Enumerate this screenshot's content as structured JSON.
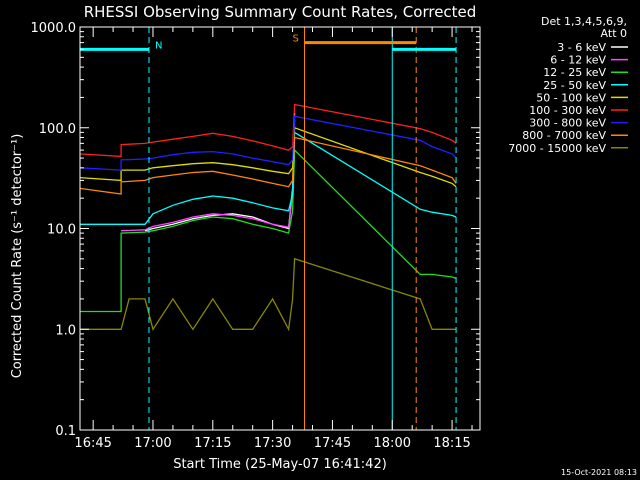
{
  "chart_data": {
    "type": "line",
    "title": "RHESSI Observing Summary Count Rates, Corrected",
    "xlabel": "Start Time (25-May-07 16:41:42)",
    "ylabel": "Corrected Count Rate (s⁻¹ detector⁻¹)",
    "yscale": "log",
    "ylim": [
      0.1,
      1000.0
    ],
    "xlim": [
      "16:41:42",
      "18:22"
    ],
    "y_ticks": [
      "0.1",
      "1.0",
      "10.0",
      "100.0",
      "1000.0"
    ],
    "x_ticks": [
      "16:45",
      "17:00",
      "17:15",
      "17:30",
      "17:45",
      "18:00",
      "18:15"
    ],
    "grid": false,
    "legend": {
      "position": "top-right",
      "header": [
        "Det 1,3,4,5,6,9,",
        "Att 0"
      ]
    },
    "series": [
      {
        "name": "3 - 6 keV",
        "color": "#ffffff",
        "x": [
          "16:41:42",
          "16:52",
          "16:58",
          "17:00",
          "17:05",
          "17:10",
          "17:15",
          "17:20",
          "17:25",
          "17:30",
          "17:34",
          "17:35",
          "17:35:30"
        ],
        "y": [
          null,
          null,
          9.5,
          10,
          11,
          12.5,
          13.5,
          14,
          13,
          11,
          10,
          25,
          140
        ]
      },
      {
        "name": "6 - 12 keV",
        "color": "#ff44ff",
        "x": [
          "16:52",
          "16:58",
          "17:00",
          "17:05",
          "17:10",
          "17:15",
          "17:20",
          "17:25",
          "17:30",
          "17:34",
          "17:35",
          "17:35:30"
        ],
        "y": [
          9.5,
          9.7,
          10.5,
          11.5,
          13,
          14,
          13.5,
          12.5,
          11,
          10.3,
          22,
          120
        ]
      },
      {
        "name": "12 - 25 keV",
        "color": "#22dd22",
        "x": [
          "16:41:42",
          "16:52",
          "16:52:01",
          "16:58",
          "17:00",
          "17:05",
          "17:10",
          "17:15",
          "17:20",
          "17:25",
          "17:30",
          "17:34",
          "17:35",
          "17:35:30",
          "18:07",
          "18:10",
          "18:15",
          "18:16"
        ],
        "y": [
          1.5,
          1.5,
          9,
          9.2,
          9.5,
          10.5,
          12,
          13,
          12.5,
          11,
          10,
          9,
          15,
          60,
          3.5,
          3.5,
          3.3,
          3.2
        ]
      },
      {
        "name": "25 - 50 keV",
        "color": "#00ffff",
        "x": [
          "16:41:42",
          "16:52",
          "16:58",
          "17:00",
          "17:05",
          "17:10",
          "17:15",
          "17:20",
          "17:25",
          "17:30",
          "17:34",
          "17:35",
          "17:35:30",
          "18:07",
          "18:10",
          "18:15",
          "18:16"
        ],
        "y": [
          11,
          11,
          11,
          14,
          17,
          19.5,
          21,
          20,
          18,
          16,
          15,
          22,
          90,
          15.5,
          14.5,
          13.5,
          13
        ]
      },
      {
        "name": "50 - 100 keV",
        "color": "#dddd00",
        "x": [
          "16:41:42",
          "16:52",
          "16:52:01",
          "16:58",
          "17:00",
          "17:05",
          "17:10",
          "17:15",
          "17:20",
          "17:25",
          "17:30",
          "17:34",
          "17:35",
          "17:35:30",
          "18:07",
          "18:10",
          "18:15",
          "18:16"
        ],
        "y": [
          32,
          30,
          38,
          38,
          40,
          42,
          44,
          45,
          43,
          40,
          37,
          35,
          40,
          100,
          36,
          33,
          28,
          26
        ]
      },
      {
        "name": "100 - 300 keV",
        "color": "#ff2020",
        "x": [
          "16:41:42",
          "16:52",
          "16:52:01",
          "16:58",
          "17:00",
          "17:05",
          "17:10",
          "17:15",
          "17:20",
          "17:25",
          "17:30",
          "17:34",
          "17:35",
          "17:35:30",
          "18:07",
          "18:10",
          "18:15",
          "18:16"
        ],
        "y": [
          55,
          52,
          68,
          70,
          72,
          77,
          82,
          88,
          82,
          74,
          66,
          60,
          65,
          170,
          98,
          90,
          75,
          70
        ]
      },
      {
        "name": "300 - 800 keV",
        "color": "#2020ff",
        "x": [
          "16:41:42",
          "16:52",
          "16:52:01",
          "16:58",
          "17:00",
          "17:05",
          "17:10",
          "17:15",
          "17:20",
          "17:25",
          "17:30",
          "17:34",
          "17:35",
          "17:35:30",
          "18:07",
          "18:10",
          "18:15",
          "18:16"
        ],
        "y": [
          40,
          38,
          48,
          49,
          50,
          54,
          57,
          58,
          55,
          50,
          46,
          43,
          48,
          130,
          75,
          65,
          55,
          50
        ]
      },
      {
        "name": "800 - 7000 keV",
        "color": "#ff8800",
        "x": [
          "16:41:42",
          "16:52",
          "16:52:01",
          "16:58",
          "17:00",
          "17:05",
          "17:10",
          "17:15",
          "17:20",
          "17:25",
          "17:30",
          "17:34",
          "17:35",
          "17:35:30",
          "18:07",
          "18:10",
          "18:15",
          "18:16"
        ],
        "y": [
          25,
          22,
          29,
          30,
          32,
          34,
          36,
          37,
          34,
          31,
          28,
          26,
          30,
          80,
          42,
          38,
          32,
          28
        ]
      },
      {
        "name": "7000 - 15000 keV",
        "color": "#888800",
        "x": [
          "16:41:42",
          "16:52",
          "16:54",
          "16:58",
          "17:00",
          "17:05",
          "17:10",
          "17:15",
          "17:20",
          "17:25",
          "17:30",
          "17:34",
          "17:35",
          "17:35:30",
          "18:07",
          "18:10",
          "18:15",
          "18:16"
        ],
        "y": [
          1,
          1,
          2,
          2,
          1,
          2,
          1,
          2,
          1,
          1,
          2,
          1,
          2,
          5,
          2,
          1,
          1,
          1
        ]
      }
    ],
    "annotations": [
      {
        "label": "N",
        "color": "#00ffff",
        "level": 600,
        "x_start": "16:41:42",
        "x_end": "16:59"
      },
      {
        "label": "",
        "color": "#00ffff",
        "level": 600,
        "x_start": "18:00",
        "x_end": "18:16"
      },
      {
        "label": "S",
        "color": "#ff8800",
        "level": 700,
        "x_start": "17:38",
        "x_end": "18:06"
      }
    ],
    "vertical_lines": [
      {
        "x": "16:41:42",
        "color": "#00ffff",
        "style": "solid"
      },
      {
        "x": "16:59",
        "color": "#00ffff",
        "style": "dashed"
      },
      {
        "x": "17:38",
        "color": "#ff8800",
        "style": "solid"
      },
      {
        "x": "18:00",
        "color": "#00ffff",
        "style": "solid"
      },
      {
        "x": "18:06",
        "color": "#ff8800",
        "style": "dashed"
      },
      {
        "x": "18:16",
        "color": "#00ffff",
        "style": "dashed"
      }
    ]
  },
  "footer": {
    "timestamp": "15-Oct-2021 08:13"
  }
}
